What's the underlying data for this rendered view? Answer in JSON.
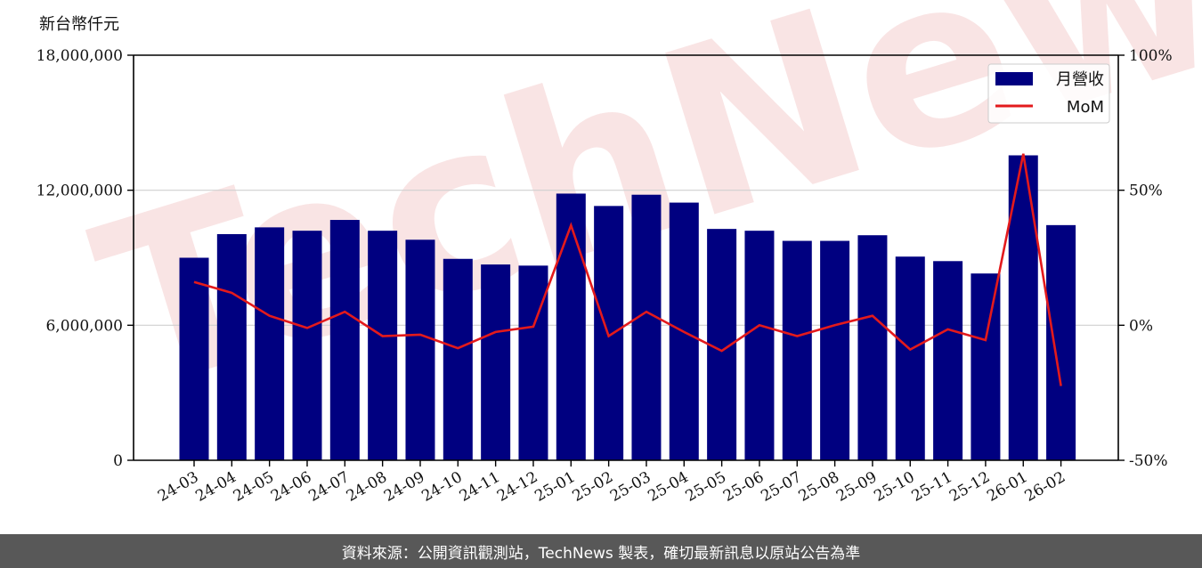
{
  "chart_data": {
    "type": "bar",
    "unit_label": "新台幣仟元",
    "categories": [
      "24-03",
      "24-04",
      "24-05",
      "24-06",
      "24-07",
      "24-08",
      "24-09",
      "24-10",
      "24-11",
      "24-12",
      "25-01",
      "25-02",
      "25-03",
      "25-04",
      "25-05",
      "25-06",
      "25-07",
      "25-08",
      "25-09",
      "25-10",
      "25-11",
      "25-12",
      "26-01",
      "26-02"
    ],
    "series": [
      {
        "name": "月營收",
        "axis": "left",
        "type": "bar",
        "color": "#000080",
        "values": [
          9000000,
          10050000,
          10350000,
          10200000,
          10680000,
          10200000,
          9800000,
          8950000,
          8700000,
          8650000,
          11850000,
          11300000,
          11800000,
          11450000,
          10280000,
          10200000,
          9750000,
          9750000,
          10000000,
          9050000,
          8850000,
          8300000,
          13550000,
          10450000
        ]
      },
      {
        "name": "MoM",
        "axis": "right",
        "type": "line",
        "color": "#e31a1c",
        "values": [
          16,
          12,
          3.5,
          -1,
          5,
          -4,
          -3.5,
          -8.5,
          -2.5,
          -0.5,
          37,
          -4,
          5,
          -2.5,
          -9.5,
          0,
          -4,
          0,
          3.5,
          -9,
          -1.5,
          -5.5,
          63.5,
          -22.5
        ]
      }
    ],
    "y_left": {
      "min": 0,
      "max": 18000000,
      "ticks": [
        "0",
        "6,000,000",
        "12,000,000",
        "18,000,000"
      ],
      "tick_values": [
        0,
        6000000,
        12000000,
        18000000
      ]
    },
    "y_right": {
      "min": -50,
      "max": 100,
      "ticks": [
        "-50%",
        "0%",
        "50%",
        "100%"
      ],
      "tick_values": [
        -50,
        0,
        50,
        100
      ]
    },
    "grid": "horizontal",
    "legend_position": "top-right"
  },
  "watermark": {
    "text": "TechNews",
    "color": "#f2c4c4"
  },
  "footer": {
    "text": "資料來源：公開資訊觀測站，TechNews 製表，確切最新訊息以原站公告為準"
  }
}
